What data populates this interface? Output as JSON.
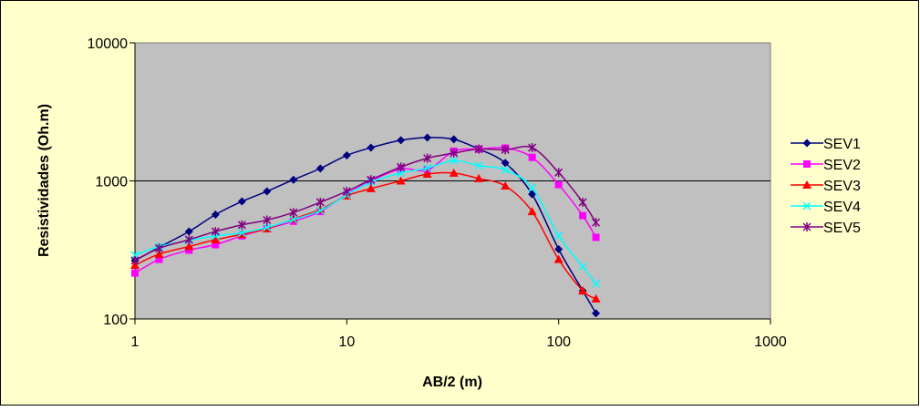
{
  "chart_data": {
    "type": "line",
    "xlabel": "AB/2 (m)",
    "ylabel": "Resistividades (Oh.m)",
    "x_scale": "log",
    "y_scale": "log",
    "xlim": [
      1,
      1000
    ],
    "ylim": [
      100,
      10000
    ],
    "x_ticks": [
      "1",
      "10",
      "100",
      "1000"
    ],
    "y_ticks": [
      "100",
      "1000",
      "10000"
    ],
    "grid": "horizontal major gridlines",
    "legend_position": "right",
    "colors": {
      "chart_background": "#FFFFCC",
      "plot_background": "#C0C0C0",
      "border": "#000000"
    },
    "x": [
      1,
      1.3,
      1.8,
      2.4,
      3.2,
      4.2,
      5.6,
      7.5,
      10,
      13,
      18,
      24,
      32,
      42,
      56,
      75,
      100,
      130,
      150
    ],
    "series": [
      {
        "name": "SEV1",
        "color": "#000080",
        "marker": "diamond",
        "values": [
          265,
          330,
          430,
          570,
          710,
          840,
          1020,
          1230,
          1530,
          1740,
          1970,
          2060,
          2000,
          1700,
          1350,
          800,
          320,
          160,
          110
        ]
      },
      {
        "name": "SEV2",
        "color": "#FF00FF",
        "marker": "square",
        "values": [
          215,
          270,
          315,
          345,
          400,
          450,
          510,
          600,
          800,
          1000,
          1220,
          1200,
          1640,
          1700,
          1730,
          1480,
          940,
          560,
          390
        ]
      },
      {
        "name": "SEV3",
        "color": "#FF0000",
        "marker": "triangle",
        "values": [
          245,
          295,
          335,
          375,
          410,
          450,
          530,
          620,
          780,
          880,
          1000,
          1120,
          1140,
          1040,
          920,
          600,
          270,
          160,
          140
        ]
      },
      {
        "name": "SEV4",
        "color": "#00FFFF",
        "marker": "x",
        "values": [
          290,
          335,
          370,
          400,
          420,
          460,
          525,
          610,
          790,
          980,
          1140,
          1240,
          1400,
          1290,
          1200,
          890,
          400,
          240,
          180
        ]
      },
      {
        "name": "SEV5",
        "color": "#800080",
        "marker": "star",
        "values": [
          265,
          325,
          375,
          430,
          480,
          520,
          590,
          700,
          840,
          1020,
          1260,
          1460,
          1590,
          1700,
          1680,
          1740,
          1150,
          700,
          500
        ]
      }
    ]
  }
}
